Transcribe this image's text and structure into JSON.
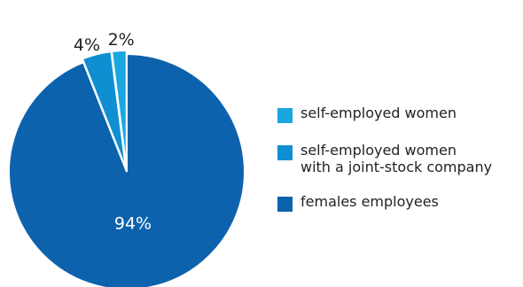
{
  "chart_data": {
    "type": "pie",
    "title": "",
    "slices": [
      {
        "label": "self-employed women",
        "value": 2,
        "display": "2%",
        "color": "#1aa7e0"
      },
      {
        "label": "self-employed women\nwith a joint-stock company",
        "value": 4,
        "display": "4%",
        "color": "#0f8fd2"
      },
      {
        "label": "females employees",
        "value": 94,
        "display": "94%",
        "color": "#0d62ad"
      }
    ],
    "legend_position": "right",
    "exploded": true
  }
}
